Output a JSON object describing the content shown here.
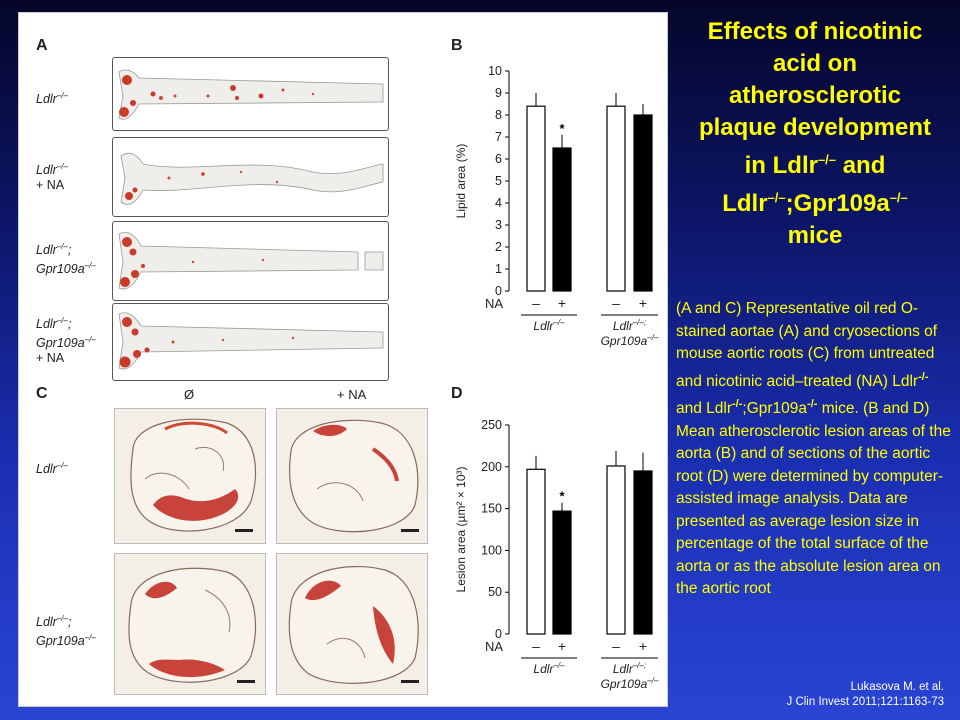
{
  "title": {
    "line1": "Effects of nicotinic",
    "line2": "acid on",
    "line3": "atherosclerotic",
    "line4": "plaque development",
    "line5_pre": "in Ldlr",
    "line5_sup": "–/–",
    "line5_post": " and",
    "line6_pre": "Ldlr",
    "line6_sup1": "–/–",
    "line6_mid": ";Gpr109a",
    "line6_sup2": "–/–",
    "line7": "mice"
  },
  "caption": {
    "part1": "(A and C) Representative oil red O-stained aortae (A) and cryosections of mouse aortic roots (C) from untreated and nicotinic acid–treated (NA) Ldlr",
    "sup1": "-/-",
    "part2": " and Ldlr",
    "sup2": "-/-",
    "part3": ";Gpr109a",
    "sup3": "-/-",
    "part4": " mice. (B and D) Mean atherosclerotic lesion areas of the aorta (B) and of sections of the aortic root (D) were determined by computer-assisted image analysis. Data are presented as average lesion size in percentage of the total surface of the aorta or as the absolute lesion area on the aortic root"
  },
  "citation": {
    "line1": "Lukasova M. et al.",
    "line2": "J Clin Invest 2011;121:1163-73"
  },
  "figure": {
    "panel_a": "A",
    "panel_b": "B",
    "panel_c": "C",
    "panel_d": "D",
    "gene1": "Ldlr",
    "gene2": "Gpr109a",
    "ko_sup": "–/–",
    "ko_semi": ";",
    "plus_na": "+ NA",
    "col_untreated": "Ø",
    "col_na": "+ NA",
    "na_label": "NA",
    "minus": "–",
    "plus": "+",
    "star": "*"
  },
  "chart_data": [
    {
      "type": "bar",
      "panel": "B",
      "ylabel": "Lipid area (%)",
      "ylim": [
        0,
        10
      ],
      "yticks": [
        "0",
        "1",
        "2",
        "3",
        "4",
        "5",
        "6",
        "7",
        "8",
        "9",
        "10"
      ],
      "groups": [
        "Ldlr–/–",
        "Ldlr–/–; Gpr109a–/–"
      ],
      "treatment": [
        "–",
        "+",
        "–",
        "+"
      ],
      "values": [
        8.4,
        6.5,
        8.4,
        8.0
      ],
      "errors": [
        0.6,
        0.6,
        0.6,
        0.5
      ],
      "colors": [
        "#ffffff",
        "#000000",
        "#ffffff",
        "#000000"
      ],
      "significant": [
        false,
        true,
        false,
        false
      ]
    },
    {
      "type": "bar",
      "panel": "D",
      "ylabel": "Lesion area (µm² × 10³)",
      "ylim": [
        0,
        250
      ],
      "yticks": [
        "0",
        "50",
        "100",
        "150",
        "200",
        "250"
      ],
      "groups": [
        "Ldlr–/–",
        "Ldlr–/–; Gpr109a–/–"
      ],
      "treatment": [
        "–",
        "+",
        "–",
        "+"
      ],
      "values": [
        197,
        147,
        201,
        195
      ],
      "errors": [
        16,
        10,
        18,
        22
      ],
      "colors": [
        "#ffffff",
        "#000000",
        "#ffffff",
        "#000000"
      ],
      "significant": [
        false,
        true,
        false,
        false
      ]
    }
  ]
}
